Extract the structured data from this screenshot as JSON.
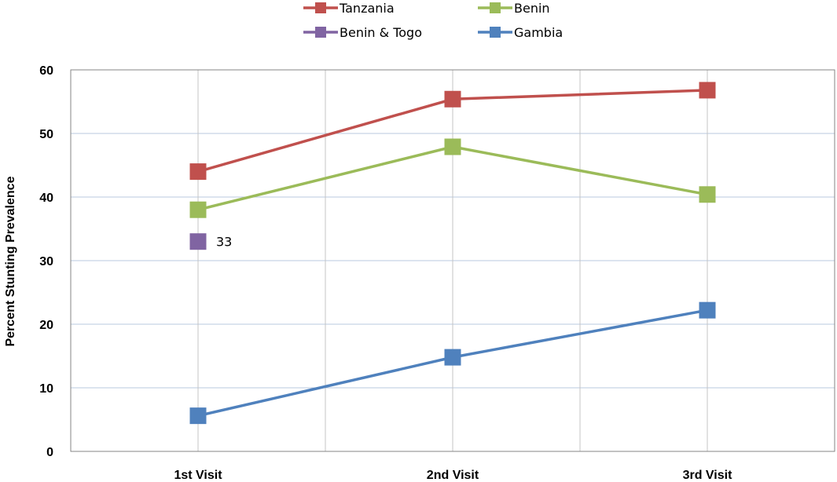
{
  "chart_data": {
    "type": "line",
    "title": "",
    "xlabel": "",
    "ylabel": "Percent Stunting Prevalence",
    "ylim": [
      0,
      60
    ],
    "yticks": [
      0,
      10,
      20,
      30,
      40,
      50,
      60
    ],
    "categories": [
      "1st Visit",
      "2nd Visit",
      "3rd Visit"
    ],
    "grid": true,
    "legend_position": "top",
    "series": [
      {
        "name": "Tanzania",
        "color": "#c0504d",
        "values": [
          44,
          55.4,
          56.8
        ]
      },
      {
        "name": "Benin",
        "color": "#9bbb59",
        "values": [
          38,
          47.9,
          40.4
        ]
      },
      {
        "name": "Benin & Togo",
        "color": "#8064a2",
        "values": [
          33,
          null,
          null
        ],
        "data_label": "33"
      },
      {
        "name": "Gambia",
        "color": "#4f81bd",
        "values": [
          5.6,
          14.8,
          22.2
        ]
      }
    ]
  }
}
